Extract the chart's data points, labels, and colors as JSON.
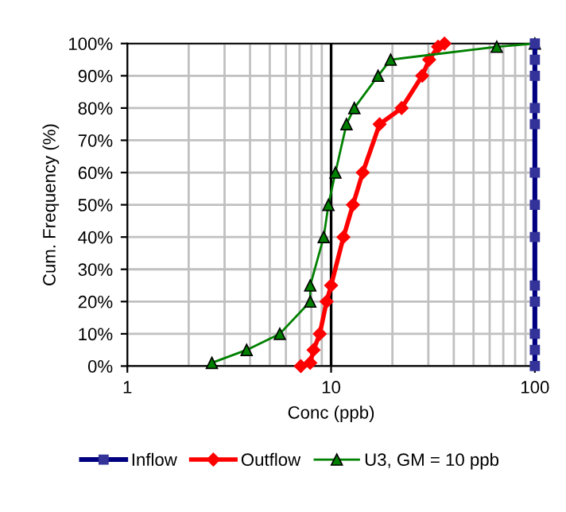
{
  "chart_data": {
    "type": "line",
    "xlabel": "Conc (ppb)",
    "ylabel": "Cum. Frequency (%)",
    "log": "x",
    "xlim": [
      1,
      100
    ],
    "xticks": [
      1,
      10,
      100
    ],
    "ylim": [
      0,
      100
    ],
    "yticks": [
      {
        "value": 0,
        "label": "0%"
      },
      {
        "value": 10,
        "label": "10%"
      },
      {
        "value": 20,
        "label": "20%"
      },
      {
        "value": 30,
        "label": "30%"
      },
      {
        "value": 40,
        "label": "40%"
      },
      {
        "value": 50,
        "label": "50%"
      },
      {
        "value": 60,
        "label": "60%"
      },
      {
        "value": 70,
        "label": "70%"
      },
      {
        "value": 80,
        "label": "80%"
      },
      {
        "value": 90,
        "label": "90%"
      },
      {
        "value": 100,
        "label": "100%"
      }
    ],
    "grid": true,
    "legend": "bottom",
    "ref_lines": [
      {
        "axis": "x",
        "value": 10,
        "color": "#000000"
      }
    ],
    "series": [
      {
        "name": "Inflow",
        "color": "#000080",
        "marker": "square",
        "x": [
          100,
          100,
          100,
          100,
          100,
          100,
          100,
          100,
          100,
          100,
          100,
          100,
          100
        ],
        "values": [
          0,
          5,
          10,
          20,
          25,
          40,
          50,
          60,
          75,
          80,
          90,
          95,
          100
        ]
      },
      {
        "name": "Outflow",
        "color": "#ff0000",
        "marker": "diamond",
        "x": [
          7.1,
          7.9,
          8.2,
          8.8,
          9.5,
          10,
          11.5,
          12.8,
          14.3,
          17.3,
          22.2,
          28,
          30.3,
          33.5,
          36
        ],
        "values": [
          0,
          1,
          5,
          10,
          20,
          25,
          40,
          50,
          60,
          75,
          80,
          90,
          95,
          99,
          100
        ]
      },
      {
        "name": "U3, GM = 10 ppb",
        "color": "#008000",
        "marker": "triangle",
        "x": [
          2.6,
          3.85,
          5.6,
          7.9,
          7.9,
          9.2,
          9.7,
          10.5,
          11.9,
          13,
          17,
          19.6,
          65,
          100
        ],
        "values": [
          1,
          5,
          10,
          20,
          25,
          40,
          50,
          60,
          75,
          80,
          90,
          95,
          99,
          100
        ]
      }
    ]
  }
}
